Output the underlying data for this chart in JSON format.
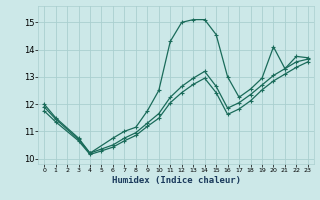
{
  "xlabel": "Humidex (Indice chaleur)",
  "bg_color": "#cce8e8",
  "grid_color": "#aacfcf",
  "line_color": "#1a6b5a",
  "xlim": [
    -0.5,
    23.5
  ],
  "ylim": [
    9.8,
    15.6
  ],
  "yticks": [
    10,
    11,
    12,
    13,
    14,
    15
  ],
  "xticks": [
    0,
    1,
    2,
    3,
    4,
    5,
    6,
    7,
    8,
    9,
    10,
    11,
    12,
    13,
    14,
    15,
    16,
    17,
    18,
    19,
    20,
    21,
    22,
    23
  ],
  "lines": [
    {
      "x": [
        0,
        1,
        3,
        4,
        6,
        7,
        8,
        9,
        10,
        11,
        12,
        13,
        14,
        15,
        16,
        17,
        18,
        19,
        20,
        21,
        22,
        23
      ],
      "y": [
        12.0,
        11.5,
        10.75,
        10.2,
        10.75,
        11.0,
        11.15,
        11.75,
        12.5,
        14.3,
        15.0,
        15.1,
        15.1,
        14.55,
        13.0,
        12.25,
        12.55,
        12.95,
        14.1,
        13.3,
        13.75,
        13.7
      ]
    },
    {
      "x": [
        0,
        1,
        3,
        4,
        5,
        6,
        7,
        8,
        9,
        10,
        11,
        12,
        13,
        14,
        15,
        16,
        17,
        18,
        19,
        20,
        21,
        22,
        23
      ],
      "y": [
        11.9,
        11.45,
        10.7,
        10.2,
        10.35,
        10.5,
        10.75,
        10.95,
        11.3,
        11.65,
        12.25,
        12.65,
        12.95,
        13.2,
        12.65,
        11.85,
        12.05,
        12.35,
        12.7,
        13.05,
        13.3,
        13.55,
        13.65
      ]
    },
    {
      "x": [
        0,
        1,
        3,
        4,
        5,
        6,
        7,
        8,
        9,
        10,
        11,
        12,
        13,
        14,
        15,
        16,
        17,
        18,
        19,
        20,
        21,
        22,
        23
      ],
      "y": [
        11.75,
        11.35,
        10.65,
        10.15,
        10.28,
        10.42,
        10.65,
        10.85,
        11.18,
        11.48,
        12.05,
        12.42,
        12.72,
        12.95,
        12.42,
        11.62,
        11.82,
        12.12,
        12.52,
        12.85,
        13.1,
        13.35,
        13.55
      ]
    }
  ]
}
